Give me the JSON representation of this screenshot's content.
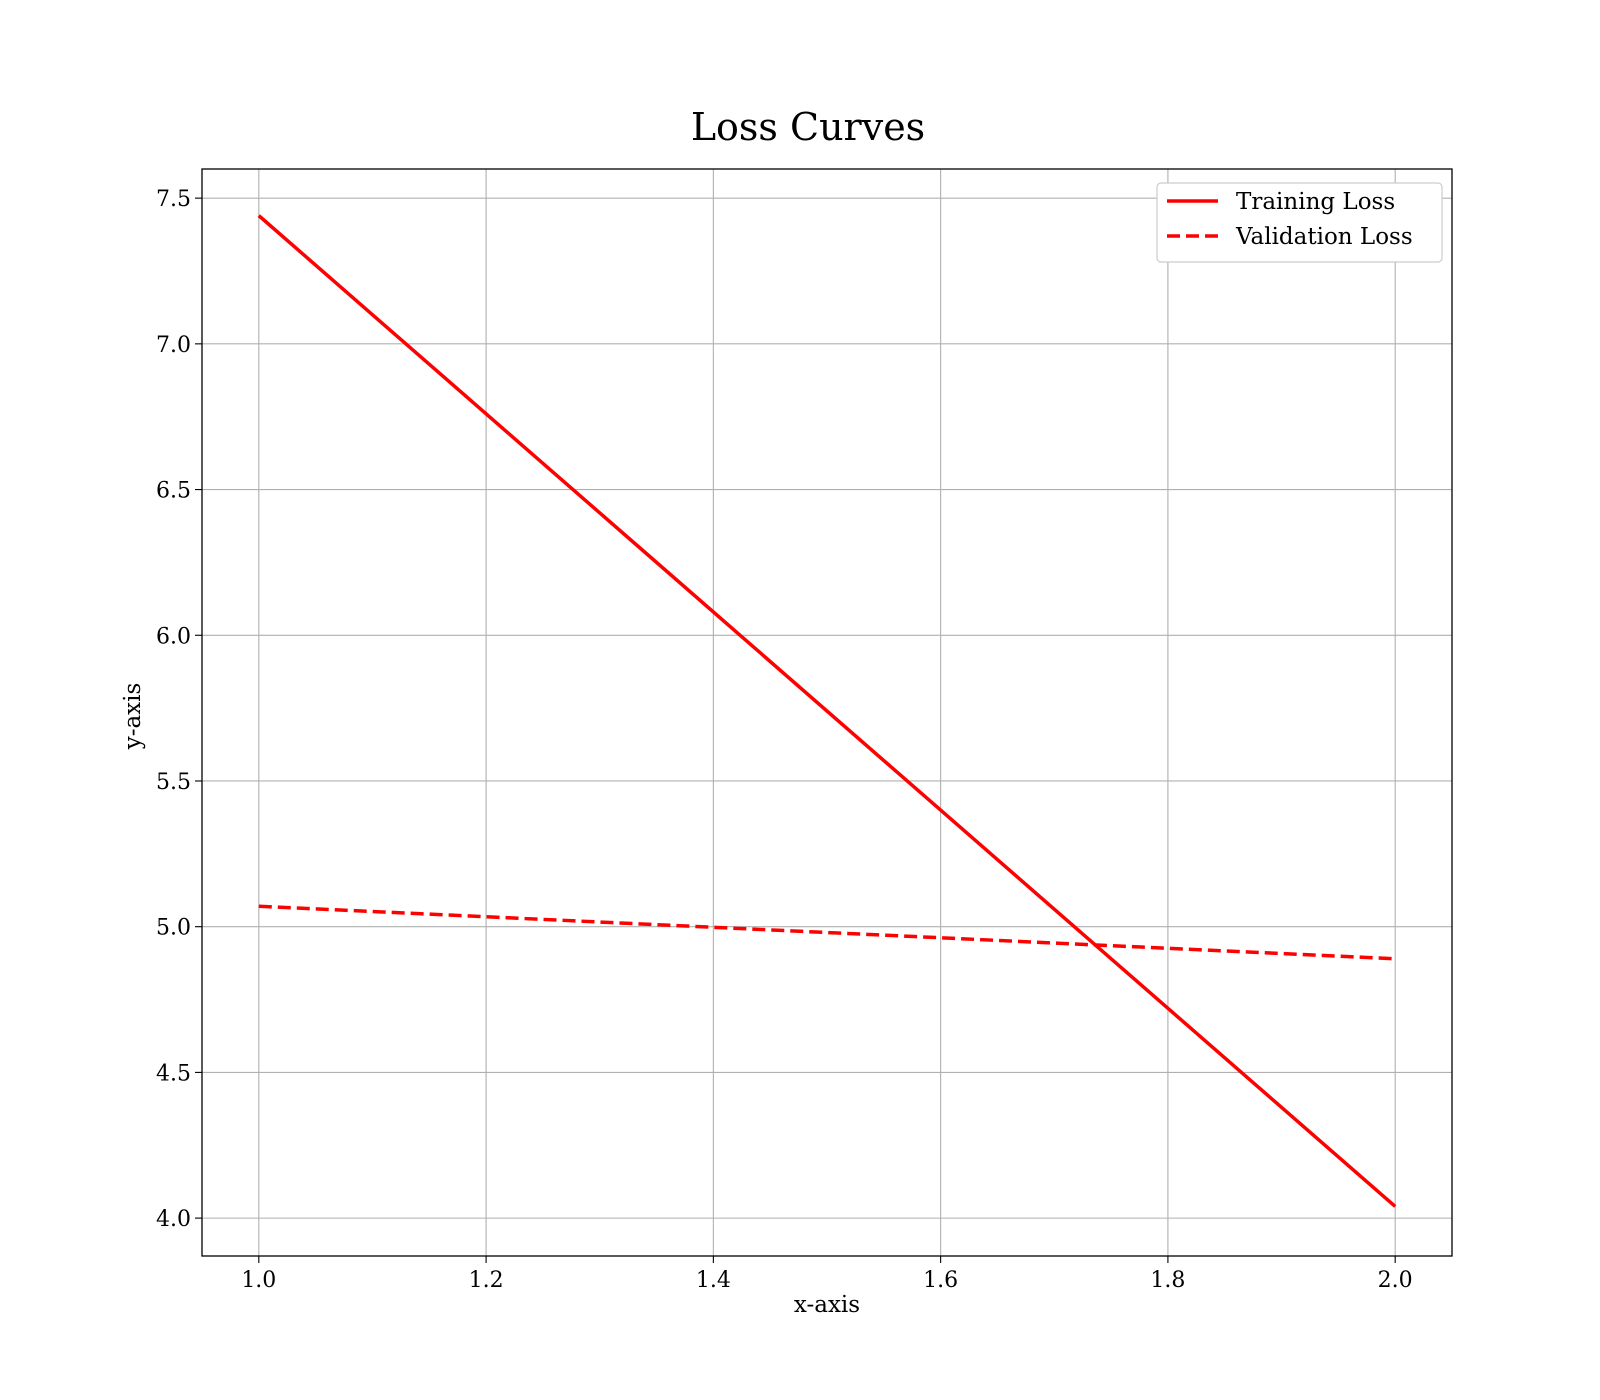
{
  "chart_data": {
    "type": "line",
    "title": "Loss Curves",
    "xlabel": "x-axis",
    "ylabel": "y-axis",
    "xlim": [
      0.95,
      2.05
    ],
    "ylim": [
      3.87,
      7.6
    ],
    "x_ticks": [
      1.0,
      1.2,
      1.4,
      1.6,
      1.8,
      2.0
    ],
    "x_tick_labels": [
      "1.0",
      "1.2",
      "1.4",
      "1.6",
      "1.8",
      "2.0"
    ],
    "y_ticks": [
      4.0,
      4.5,
      5.0,
      5.5,
      6.0,
      6.5,
      7.0,
      7.5
    ],
    "y_tick_labels": [
      "4.0",
      "4.5",
      "5.0",
      "5.5",
      "6.0",
      "6.5",
      "7.0",
      "7.5"
    ],
    "grid": true,
    "legend_position": "top-right",
    "series": [
      {
        "name": "Training Loss",
        "color": "#ff0000",
        "line_style": "solid",
        "x": [
          1.0,
          2.0
        ],
        "y": [
          7.44,
          4.04
        ]
      },
      {
        "name": "Validation Loss",
        "color": "#ff0000",
        "line_style": "dashed",
        "x": [
          1.0,
          2.0
        ],
        "y": [
          5.07,
          4.89
        ]
      }
    ]
  }
}
